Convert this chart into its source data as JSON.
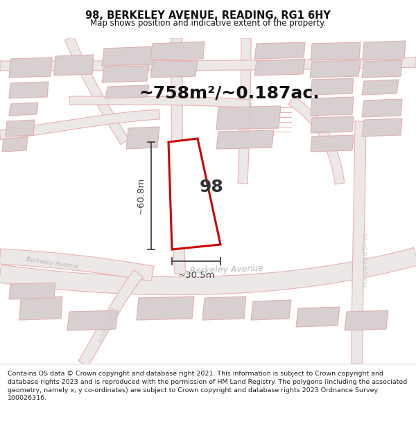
{
  "title": "98, BERKELEY AVENUE, READING, RG1 6HY",
  "subtitle": "Map shows position and indicative extent of the property.",
  "area_text": "~758m²/~0.187ac.",
  "label_number": "98",
  "dim_height": "~60.8m",
  "dim_width": "~30.5m",
  "footer": "Contains OS data © Crown copyright and database right 2021. This information is subject to Crown copyright and database rights 2023 and is reproduced with the permission of HM Land Registry. The polygons (including the associated geometry, namely x, y co-ordinates) are subject to Crown copyright and database rights 2023 Ordnance Survey 100026316.",
  "road_color": "#e8b0b0",
  "road_fill": "#f0e0e0",
  "building_fill": "#d8d0d0",
  "building_edge": "#e0b0b0",
  "plot_fill": "#ffffff",
  "plot_edge": "#cc0000",
  "dim_color": "#444444",
  "area_color": "#111111",
  "label_color": "#333333",
  "road_label_color": "#aaaaaa",
  "title_color": "#111111",
  "footer_color": "#222222",
  "bg_color": "#ffffff",
  "map_bg": "#ffffff"
}
